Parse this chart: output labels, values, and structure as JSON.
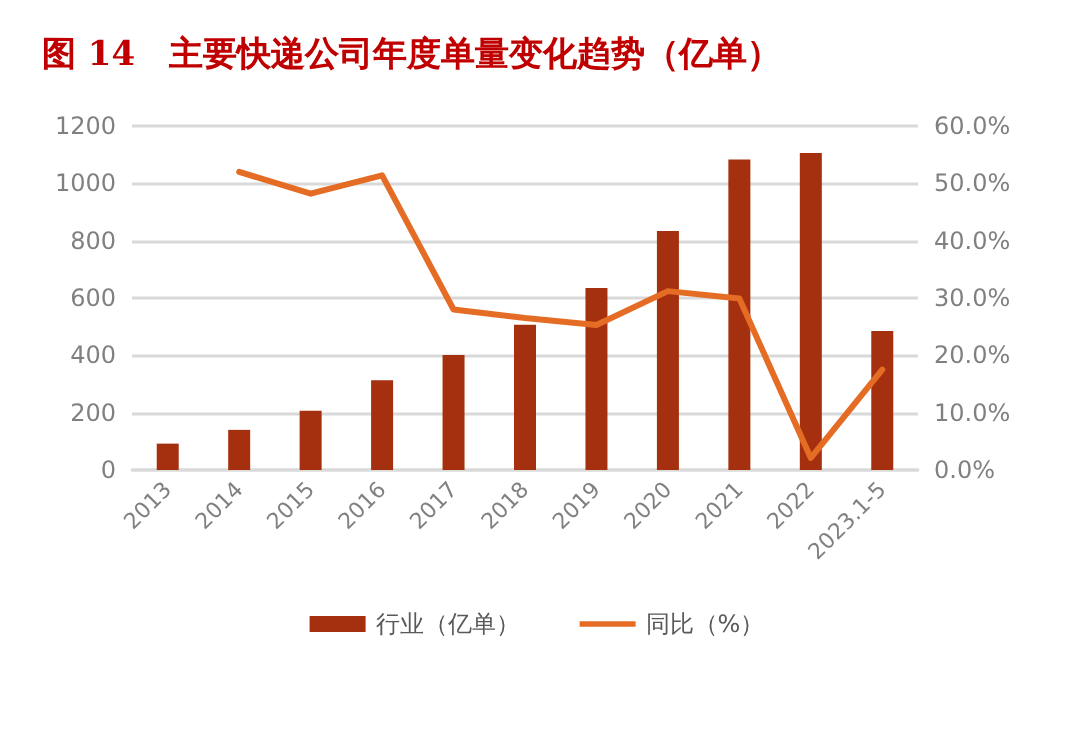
{
  "chart_data": {
    "type": "bar",
    "title": "图 14　主要快递公司年度单量变化趋势（亿单）",
    "categories": [
      "2013",
      "2014",
      "2015",
      "2016",
      "2017",
      "2018",
      "2019",
      "2020",
      "2021",
      "2022",
      "2023.1-5"
    ],
    "series": [
      {
        "name": "行业（亿单）",
        "color": "#a5300f",
        "values": [
          92,
          140,
          207,
          313,
          401,
          507,
          635,
          834,
          1083,
          1106,
          485
        ]
      },
      {
        "name": "同比（%）",
        "type": "line",
        "axis": "y2",
        "color": "#e46c24",
        "values": [
          null,
          52.0,
          48.2,
          51.4,
          28.0,
          26.5,
          25.3,
          31.2,
          29.9,
          2.1,
          17.5
        ]
      }
    ],
    "ylim": [
      0,
      1200
    ],
    "yticks": [
      0,
      200,
      400,
      600,
      800,
      1000,
      1200
    ],
    "y2lim": [
      0,
      60
    ],
    "y2ticks": [
      {
        "value": 0,
        "label": "0.0%"
      },
      {
        "value": 10,
        "label": "10.0%"
      },
      {
        "value": 20,
        "label": "20.0%"
      },
      {
        "value": 30,
        "label": "30.0%"
      },
      {
        "value": 40,
        "label": "40.0%"
      },
      {
        "value": 50,
        "label": "50.0%"
      },
      {
        "value": 60,
        "label": "60.0%"
      }
    ],
    "grid": "y",
    "legend": "bottom",
    "marker": "none",
    "line_style": "solid"
  }
}
